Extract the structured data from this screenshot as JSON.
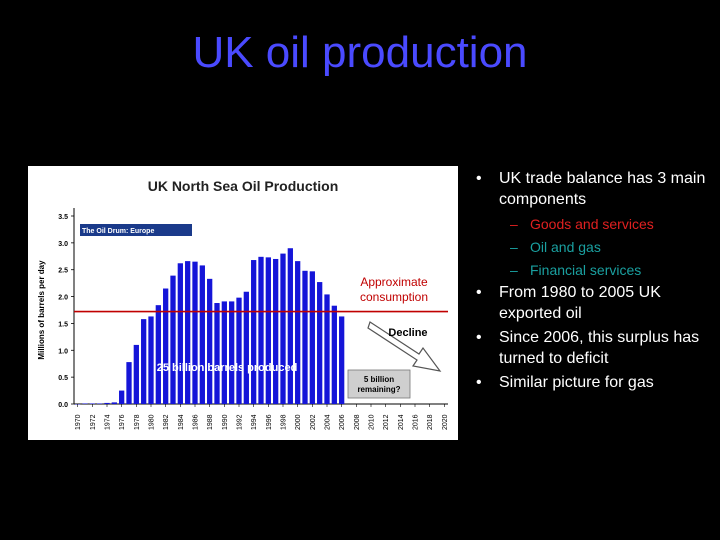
{
  "slide": {
    "title": "UK oil production",
    "bullets": [
      {
        "text": "UK trade balance has 3 main components",
        "level": 0
      },
      {
        "text": "Goods and services",
        "level": 1,
        "color": "#e02020"
      },
      {
        "text": "Oil and gas",
        "level": 1,
        "color": "#1aa0a0"
      },
      {
        "text": "Financial services",
        "level": 1,
        "color": "#1aa0a0"
      },
      {
        "text": "From 1980 to 2005 UK exported oil",
        "level": 0
      },
      {
        "text": "Since 2006, this surplus has turned to deficit",
        "level": 0
      },
      {
        "text": "Similar picture for gas",
        "level": 0
      }
    ]
  },
  "chart_data": {
    "type": "bar",
    "title": "UK North Sea Oil Production",
    "ylabel": "Millions of barrels per day",
    "xlabel": "",
    "ylim": [
      0,
      3.5
    ],
    "yticks": [
      "0.0",
      "0.5",
      "1.0",
      "1.5",
      "2.0",
      "2.5",
      "3.0",
      "3.5"
    ],
    "xlim": [
      1970,
      2020
    ],
    "xticks": [
      "1970",
      "1972",
      "1974",
      "1976",
      "1978",
      "1980",
      "1982",
      "1984",
      "1986",
      "1988",
      "1990",
      "1992",
      "1994",
      "1996",
      "1998",
      "2000",
      "2002",
      "2004",
      "2006",
      "2008",
      "2010",
      "2012",
      "2014",
      "2016",
      "2018",
      "2020"
    ],
    "years": [
      1970,
      1971,
      1972,
      1973,
      1974,
      1975,
      1976,
      1977,
      1978,
      1979,
      1980,
      1981,
      1982,
      1983,
      1984,
      1985,
      1986,
      1987,
      1988,
      1989,
      1990,
      1991,
      1992,
      1993,
      1994,
      1995,
      1996,
      1997,
      1998,
      1999,
      2000,
      2001,
      2002,
      2003,
      2004,
      2005,
      2006
    ],
    "values": [
      0.0,
      0.01,
      0.01,
      0.01,
      0.02,
      0.03,
      0.25,
      0.78,
      1.1,
      1.58,
      1.63,
      1.84,
      2.15,
      2.39,
      2.62,
      2.66,
      2.65,
      2.58,
      2.33,
      1.88,
      1.91,
      1.91,
      1.98,
      2.09,
      2.68,
      2.74,
      2.73,
      2.7,
      2.8,
      2.9,
      2.66,
      2.48,
      2.47,
      2.27,
      2.04,
      1.83,
      1.63
    ],
    "bar_color": "#1515d8",
    "consumption_level": 1.72,
    "consumption_color": "#c00000",
    "annotations": {
      "watermark": "The Oil Drum: Europe",
      "consumption_label": "Approximate consumption",
      "produced_label": "25 billion barrels produced",
      "decline_label": "Decline",
      "remaining_label": "5 billion remaining?"
    },
    "grid": false,
    "legend": "none"
  }
}
